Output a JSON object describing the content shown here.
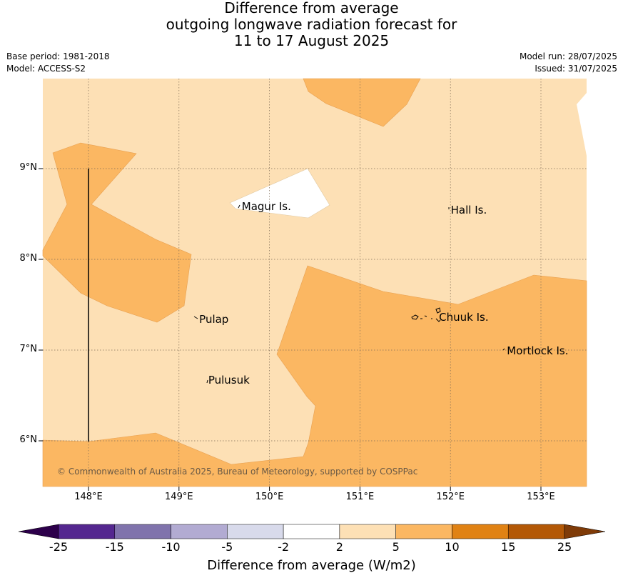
{
  "title": {
    "line1": "Difference from average",
    "line2": "outgoing longwave radiation forecast for",
    "line3": "11 to 17 August 2025"
  },
  "meta": {
    "base_period": "Base period: 1981-2018",
    "model": "Model: ACCESS-S2",
    "model_run": "Model run: 28/07/2025",
    "issued": "Issued: 31/07/2025"
  },
  "map": {
    "lon_range": [
      147.5,
      153.5
    ],
    "lat_range": [
      5.5,
      10.0
    ],
    "lon_ticks": [
      {
        "value": 148,
        "label": "148°E"
      },
      {
        "value": 149,
        "label": "149°E"
      },
      {
        "value": 150,
        "label": "150°E"
      },
      {
        "value": 151,
        "label": "151°E"
      },
      {
        "value": 152,
        "label": "152°E"
      },
      {
        "value": 153,
        "label": "153°E"
      }
    ],
    "lat_ticks": [
      {
        "value": 9,
        "label": "9°N"
      },
      {
        "value": 8,
        "label": "8°N"
      },
      {
        "value": 7,
        "label": "7°N"
      },
      {
        "value": 6,
        "label": "6°N"
      }
    ],
    "gridlines": true,
    "background_color": "#fde0b5",
    "places": [
      {
        "name": "Magur Is.",
        "lon": 149.67,
        "lat": 8.57
      },
      {
        "name": "Hall Is.",
        "lon": 151.98,
        "lat": 8.53
      },
      {
        "name": "Pulap",
        "lon": 149.2,
        "lat": 7.32
      },
      {
        "name": "Chuuk Is.",
        "lon": 151.85,
        "lat": 7.35
      },
      {
        "name": "Mortlock Is.",
        "lon": 152.6,
        "lat": 6.98
      },
      {
        "name": "Pulusuk",
        "lon": 149.3,
        "lat": 6.65
      }
    ],
    "copyright": "© Commonwealth of Australia 2025, Bureau of Meteorology, supported by COSPPac"
  },
  "colorbar": {
    "bounds": [
      "-25",
      "-15",
      "-10",
      "-5",
      "-2",
      "2",
      "5",
      "10",
      "15",
      "25"
    ],
    "colors": [
      "#54278f",
      "#8073ac",
      "#b2abd2",
      "#d8daeb",
      "#ffffff",
      "#fde0b5",
      "#fbb762",
      "#e08214",
      "#b35806"
    ],
    "under_color": "#2d004b",
    "over_color": "#7f3b08",
    "label": "Difference from average (W/m2)"
  }
}
